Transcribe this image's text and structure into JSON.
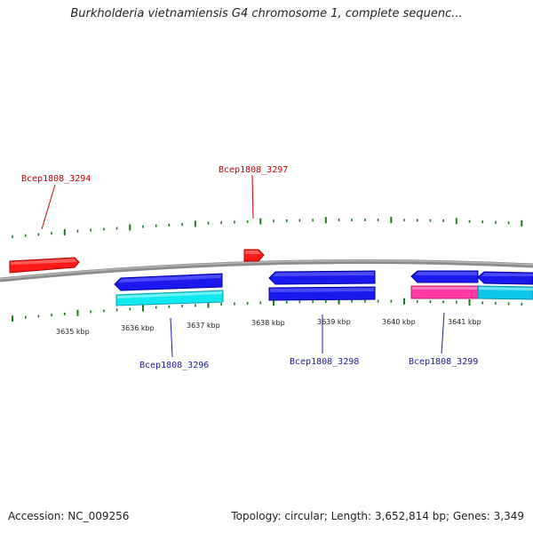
{
  "title": "Burkholderia vietnamiensis G4 chromosome 1, complete sequenc...",
  "footer": {
    "accession": "Accession: NC_009256",
    "summary": "Topology: circular; Length: 3,652,814 bp; Genes: 3,349"
  },
  "scale": {
    "kbp_labels": [
      "3635 kbp",
      "3636 kbp",
      "3637 kbp",
      "3638 kbp",
      "3639 kbp",
      "3640 kbp",
      "3641 kbp"
    ]
  },
  "colors": {
    "forward_gene": "#ff1a1a",
    "reverse_gene": "#1a1aee",
    "reverse_cds": "#10e8f0",
    "highlight": "#ff3aa0",
    "tick": "#1a7a1a",
    "backbone": "#888888",
    "label_forward": "#cc0000",
    "label_reverse": "#1a1aaa"
  },
  "genes": [
    {
      "name": "Bcep1808_3294",
      "strand": "forward"
    },
    {
      "name": "Bcep1808_3297",
      "strand": "forward"
    },
    {
      "name": "Bcep1808_3296",
      "strand": "reverse"
    },
    {
      "name": "Bcep1808_3298",
      "strand": "reverse"
    },
    {
      "name": "Bcep1808_3299",
      "strand": "reverse"
    }
  ]
}
